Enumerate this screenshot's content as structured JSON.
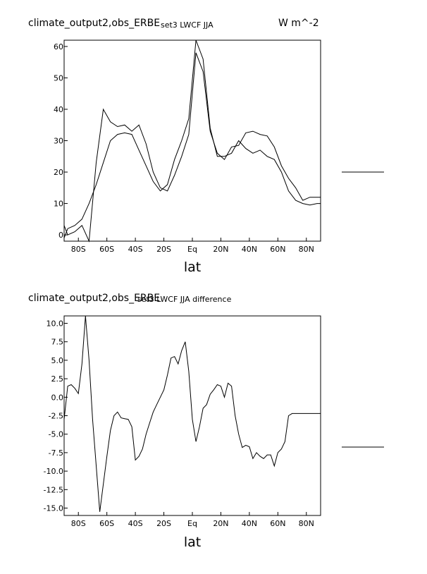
{
  "charts": [
    {
      "title": "climate_output2,obs_ERBE",
      "subtitle": "set3 LWCF JJA",
      "units": "W m^-2"
    },
    {
      "title": "climate_output2,obs_ERBE",
      "subtitle": "set3 LWCF JJA difference",
      "units": ""
    }
  ],
  "chart_data": [
    {
      "type": "line",
      "title": "climate_output2,obs_ERBE",
      "subtitle": "set3 LWCF JJA",
      "units": "W m^-2",
      "xlabel": "lat",
      "ylabel": "",
      "xlim": [
        -90,
        90
      ],
      "ylim": [
        -2,
        62
      ],
      "x_ticks": [
        -80,
        -60,
        -40,
        -20,
        0,
        20,
        40,
        60,
        80
      ],
      "x_tick_labels": [
        "80S",
        "60S",
        "40S",
        "20S",
        "Eq",
        "20N",
        "40N",
        "60N",
        "80N"
      ],
      "y_ticks": [
        0,
        10,
        20,
        30,
        40,
        50,
        60
      ],
      "y_tick_labels": [
        "0",
        "10",
        "20",
        "30",
        "40",
        "50",
        "60"
      ],
      "grid": false,
      "series": [
        {
          "color": "#000000",
          "x": [
            -90,
            -87.5,
            -82.5,
            -77.5,
            -72.5,
            -67.5,
            -62.5,
            -57.5,
            -52.5,
            -47.5,
            -42.5,
            -37.5,
            -32.5,
            -27.5,
            -22.5,
            -17.5,
            -12.5,
            -7.5,
            -2.5,
            2.5,
            7.5,
            12.5,
            17.5,
            22.5,
            27.5,
            32.5,
            37.5,
            42.5,
            47.5,
            52.5,
            57.5,
            62.5,
            67.5,
            72.5,
            77.5,
            82.5,
            87.5,
            90
          ],
          "y": [
            3,
            0,
            1,
            3,
            -2,
            23,
            40,
            36,
            34.5,
            35,
            33,
            35,
            29,
            20,
            15,
            14,
            19,
            25,
            32,
            58,
            52,
            33,
            26,
            24,
            28,
            28.5,
            32.5,
            33,
            32,
            31.5,
            28,
            22,
            18,
            15,
            11,
            12,
            12,
            12
          ]
        },
        {
          "color": "#000000",
          "x": [
            -90,
            -87.5,
            -82.5,
            -77.5,
            -72.5,
            -67.5,
            -62.5,
            -57.5,
            -52.5,
            -47.5,
            -42.5,
            -37.5,
            -32.5,
            -27.5,
            -22.5,
            -17.5,
            -12.5,
            -7.5,
            -2.5,
            2.5,
            7.5,
            12.5,
            17.5,
            22.5,
            27.5,
            32.5,
            37.5,
            42.5,
            47.5,
            52.5,
            57.5,
            62.5,
            67.5,
            72.5,
            77.5,
            82.5,
            87.5,
            90
          ],
          "y": [
            -1,
            2,
            3,
            5,
            10,
            16,
            23,
            30,
            32,
            32.5,
            32,
            27,
            22,
            17,
            14,
            16,
            24,
            30,
            37,
            62,
            56,
            34,
            25,
            25,
            26,
            30,
            27.5,
            26,
            27,
            25,
            24,
            20,
            14,
            11,
            10,
            9.5,
            10,
            10
          ]
        }
      ]
    },
    {
      "type": "line",
      "title": "climate_output2,obs_ERBE",
      "subtitle": "set3 LWCF JJA difference",
      "xlabel": "lat",
      "ylabel": "",
      "xlim": [
        -90,
        90
      ],
      "ylim": [
        -16,
        11
      ],
      "x_ticks": [
        -80,
        -60,
        -40,
        -20,
        0,
        20,
        40,
        60,
        80
      ],
      "x_tick_labels": [
        "80S",
        "60S",
        "40S",
        "20S",
        "Eq",
        "20N",
        "40N",
        "60N",
        "80N"
      ],
      "y_ticks": [
        -15,
        -12.5,
        -10,
        -7.5,
        -5,
        -2.5,
        0,
        2.5,
        5,
        7.5,
        10
      ],
      "y_tick_labels": [
        "-15.0",
        "-12.5",
        "-10.0",
        "-7.5",
        "-5.0",
        "-2.5",
        "0.0",
        "2.5",
        "5.0",
        "7.5",
        "10.0"
      ],
      "grid": false,
      "series": [
        {
          "color": "#000000",
          "x": [
            -90,
            -87.5,
            -85,
            -82.5,
            -80,
            -77.5,
            -75,
            -72.5,
            -70,
            -65,
            -60,
            -57.5,
            -55,
            -52.5,
            -50,
            -47.5,
            -45,
            -42.5,
            -40,
            -37.5,
            -35,
            -32.5,
            -30,
            -27.5,
            -25,
            -22.5,
            -20,
            -17.5,
            -15,
            -12.5,
            -10,
            -7.5,
            -5,
            -2.5,
            0,
            2.5,
            5,
            7.5,
            10,
            12.5,
            15,
            17.5,
            20,
            22.5,
            25,
            27.5,
            30,
            32.5,
            35,
            37.5,
            40,
            42.5,
            45,
            47.5,
            50,
            52.5,
            55,
            57.5,
            60,
            62.5,
            65,
            67.5,
            70,
            72.5,
            75,
            77.5,
            80,
            82.5,
            85,
            87.5,
            90
          ],
          "y": [
            -3,
            1.5,
            1.7,
            1.2,
            0.5,
            4.5,
            11,
            5,
            -3,
            -15.5,
            -8,
            -4.5,
            -2.5,
            -2,
            -2.8,
            -2.9,
            -3,
            -4,
            -8.5,
            -8,
            -7,
            -5,
            -3.5,
            -2,
            -1,
            0,
            1,
            3,
            5.3,
            5.5,
            4.5,
            6.3,
            7.5,
            3.5,
            -3,
            -6,
            -4,
            -1.5,
            -1,
            0.4,
            1,
            1.7,
            1.5,
            0,
            1.9,
            1.5,
            -2.5,
            -5,
            -6.8,
            -6.5,
            -6.7,
            -8.3,
            -7.5,
            -8,
            -8.3,
            -7.8,
            -7.8,
            -9.3,
            -7.5,
            -7,
            -6,
            -2.5,
            -2.2,
            -2.2,
            -2.2,
            -2.2,
            -2.2,
            -2.2,
            -2.2,
            -2.2,
            -2.2
          ]
        }
      ]
    }
  ]
}
